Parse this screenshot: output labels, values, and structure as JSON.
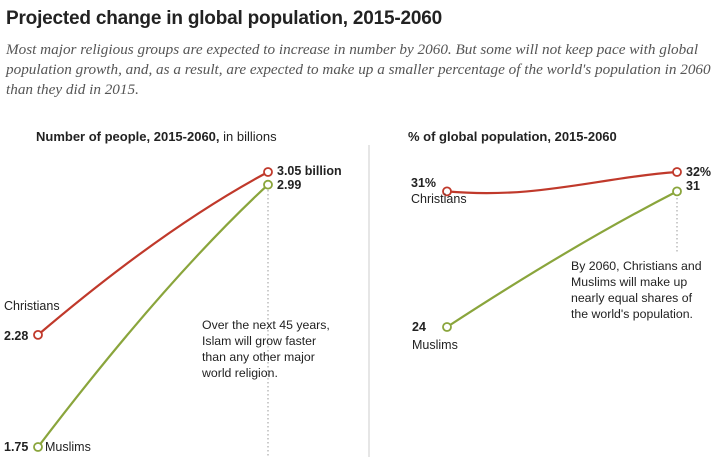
{
  "title": "Projected change in global population, 2015-2060",
  "subtitle": "Most major religious groups are expected to increase in number by 2060. But some will not keep pace with global population growth, and, as a result, are expected to make up a smaller percentage of the world's population in 2060 than they did in 2015.",
  "colors": {
    "christians": "#c0392b",
    "muslims": "#8aa53c",
    "divider": "#cccccc",
    "guide": "#999999"
  },
  "chart_data": [
    {
      "type": "line",
      "title_bold": "Number of people, 2015-2060,",
      "title_rest": " in billions",
      "x": [
        2015,
        2060
      ],
      "ylim": [
        1.75,
        3.05
      ],
      "series": [
        {
          "name": "Christians",
          "values": [
            2.28,
            3.05
          ],
          "start_label": "2.28",
          "end_label": "3.05 billion"
        },
        {
          "name": "Muslims",
          "values": [
            1.75,
            2.99
          ],
          "start_label": "1.75",
          "end_label": "2.99"
        }
      ],
      "annotation": [
        "Over the next 45 years,",
        "Islam will grow faster",
        "than any other major",
        "world religion."
      ]
    },
    {
      "type": "line",
      "title_bold": "% of global population, 2015-2060",
      "x": [
        2015,
        2060
      ],
      "ylim": [
        24,
        32
      ],
      "series": [
        {
          "name": "Christians",
          "values": [
            31,
            32
          ],
          "start_label": "31%",
          "end_label": "32%"
        },
        {
          "name": "Muslims",
          "values": [
            24,
            31
          ],
          "start_label": "24",
          "end_label": "31"
        }
      ],
      "annotation": [
        "By 2060, Christians and",
        "Muslims will make up",
        "nearly equal shares of",
        "the world's population."
      ]
    }
  ]
}
